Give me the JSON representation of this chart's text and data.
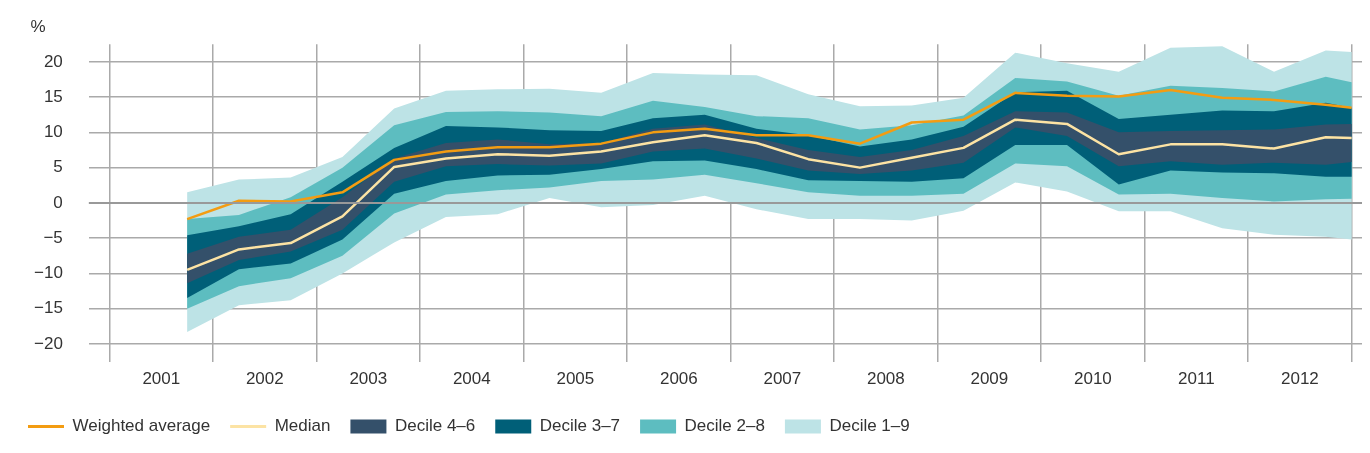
{
  "chart_data": {
    "type": "line",
    "ylabel": "%",
    "x": [
      2001.75,
      2002.25,
      2002.75,
      2003.25,
      2003.75,
      2004.25,
      2004.75,
      2005.25,
      2005.75,
      2006.25,
      2006.75,
      2007.25,
      2007.75,
      2008.25,
      2008.75,
      2009.25,
      2009.75,
      2010.25,
      2010.75,
      2011.25,
      2011.75,
      2012.25,
      2012.75,
      2013.0
    ],
    "xlim": [
      2000.8,
      2013.1
    ],
    "xticks": [
      {
        "value": 2001,
        "label": null
      },
      {
        "value": 2001.5,
        "label": "2001"
      },
      {
        "value": 2002,
        "label": null
      },
      {
        "value": 2002.5,
        "label": "2002"
      },
      {
        "value": 2003,
        "label": null
      },
      {
        "value": 2003.5,
        "label": "2003"
      },
      {
        "value": 2004,
        "label": null
      },
      {
        "value": 2004.5,
        "label": "2004"
      },
      {
        "value": 2005,
        "label": null
      },
      {
        "value": 2005.5,
        "label": "2005"
      },
      {
        "value": 2006,
        "label": null
      },
      {
        "value": 2006.5,
        "label": "2006"
      },
      {
        "value": 2007,
        "label": null
      },
      {
        "value": 2007.5,
        "label": "2007"
      },
      {
        "value": 2008,
        "label": null
      },
      {
        "value": 2008.5,
        "label": "2008"
      },
      {
        "value": 2009,
        "label": null
      },
      {
        "value": 2009.5,
        "label": "2009"
      },
      {
        "value": 2010,
        "label": null
      },
      {
        "value": 2010.5,
        "label": "2010"
      },
      {
        "value": 2011,
        "label": null
      },
      {
        "value": 2011.5,
        "label": "2011"
      },
      {
        "value": 2012,
        "label": null
      },
      {
        "value": 2012.5,
        "label": "2012"
      },
      {
        "value": 2013,
        "label": null
      }
    ],
    "ylim": [
      -22.5,
      22.5
    ],
    "yticks": [
      {
        "value": -20,
        "label": "−20"
      },
      {
        "value": -15,
        "label": "−15"
      },
      {
        "value": -10,
        "label": "−10"
      },
      {
        "value": -5,
        "label": "−5"
      },
      0,
      5,
      10,
      15,
      20
    ],
    "grid": true,
    "legend": "bottom",
    "ref_lines": [
      {
        "axis": "y",
        "value": 0,
        "color": "#999999"
      }
    ],
    "series": [
      {
        "name": "Weighted average",
        "type": "line",
        "color": "#f39c12",
        "values": [
          -2.3,
          0.3,
          0.2,
          1.5,
          6.1,
          7.3,
          7.9,
          7.9,
          8.4,
          10.0,
          10.5,
          9.6,
          9.6,
          8.4,
          11.4,
          11.8,
          15.6,
          15.2,
          15.1,
          16.0,
          14.9,
          14.6,
          13.9,
          13.5
        ]
      },
      {
        "name": "Median",
        "type": "line",
        "color": "#fce3a4",
        "values": [
          -9.5,
          -6.6,
          -5.7,
          -1.9,
          5.1,
          6.3,
          6.9,
          6.7,
          7.3,
          8.6,
          9.6,
          8.5,
          6.2,
          5.0,
          6.4,
          7.8,
          11.8,
          11.2,
          6.9,
          8.3,
          8.3,
          7.7,
          9.3,
          9.2
        ]
      },
      {
        "name": "Decile 4–6",
        "type": "area",
        "color": "#34506a",
        "values": [
          null,
          null,
          null,
          null,
          null,
          null,
          null,
          null,
          null,
          null,
          null,
          null,
          null,
          null,
          null,
          null,
          null,
          null,
          null,
          null,
          null,
          null,
          null,
          null
        ],
        "lower": [
          -11.4,
          -8.1,
          -6.9,
          -3.8,
          3.0,
          5.2,
          5.5,
          5.3,
          5.6,
          7.3,
          7.7,
          6.3,
          4.6,
          4.1,
          4.6,
          5.7,
          10.7,
          9.5,
          5.2,
          5.9,
          5.4,
          5.7,
          5.4,
          5.8
        ],
        "upper": [
          -7.2,
          -4.8,
          -3.8,
          0.8,
          6.3,
          8.5,
          9.0,
          8.3,
          8.5,
          10.5,
          11.1,
          9.2,
          7.5,
          6.5,
          7.5,
          9.5,
          13.0,
          12.8,
          10.0,
          10.2,
          10.3,
          10.4,
          11.1,
          11.2
        ]
      },
      {
        "name": "Decile 3–7",
        "type": "area",
        "color": "#005f78",
        "values": [
          null,
          null,
          null,
          null,
          null,
          null,
          null,
          null,
          null,
          null,
          null,
          null,
          null,
          null,
          null,
          null,
          null,
          null,
          null,
          null,
          null,
          null,
          null,
          null
        ],
        "lower": [
          -13.5,
          -9.4,
          -8.6,
          -5.2,
          1.3,
          3.1,
          3.9,
          4.0,
          4.8,
          5.9,
          6.0,
          4.8,
          3.2,
          3.1,
          3.0,
          3.5,
          8.2,
          8.2,
          2.6,
          4.6,
          4.3,
          4.2,
          3.7,
          3.7
        ],
        "upper": [
          -4.6,
          -3.3,
          -1.6,
          3.0,
          7.8,
          10.9,
          10.7,
          10.3,
          10.2,
          12.0,
          12.5,
          10.5,
          9.6,
          8.0,
          9.0,
          10.8,
          15.7,
          15.9,
          11.9,
          12.5,
          13.1,
          13.0,
          14.2,
          13.5
        ]
      },
      {
        "name": "Decile 2–8",
        "type": "area",
        "color": "#5dbdc0",
        "values": [
          null,
          null,
          null,
          null,
          null,
          null,
          null,
          null,
          null,
          null,
          null,
          null,
          null,
          null,
          null,
          null,
          null,
          null,
          null,
          null,
          null,
          null,
          null,
          null
        ],
        "lower": [
          -15.0,
          -11.8,
          -10.7,
          -7.5,
          -1.5,
          1.2,
          1.8,
          2.2,
          3.1,
          3.3,
          4.0,
          2.8,
          1.5,
          1.0,
          1.0,
          1.3,
          5.6,
          5.2,
          1.2,
          1.3,
          0.7,
          0.2,
          0.5,
          0.6
        ],
        "upper": [
          -2.3,
          -1.7,
          0.8,
          5.0,
          11.0,
          12.9,
          13.0,
          12.8,
          12.3,
          14.5,
          13.6,
          12.3,
          12.0,
          10.4,
          11.0,
          12.4,
          17.7,
          17.2,
          15.2,
          16.6,
          16.3,
          15.8,
          17.9,
          17.1
        ]
      },
      {
        "name": "Decile 1–9",
        "type": "area",
        "color": "#bde3e6",
        "values": [
          null,
          null,
          null,
          null,
          null,
          null,
          null,
          null,
          null,
          null,
          null,
          null,
          null,
          null,
          null,
          null,
          null,
          null,
          null,
          null,
          null,
          null,
          null,
          null
        ],
        "lower": [
          -18.3,
          -14.5,
          -13.8,
          -10.0,
          -5.6,
          -2.0,
          -1.6,
          0.7,
          -0.6,
          -0.3,
          1.0,
          -0.9,
          -2.3,
          -2.3,
          -2.5,
          -1.1,
          2.9,
          1.6,
          -1.2,
          -1.2,
          -3.6,
          -4.5,
          -4.8,
          -5.2
        ],
        "upper": [
          1.5,
          3.3,
          3.6,
          6.5,
          13.4,
          15.9,
          16.1,
          16.2,
          15.6,
          18.4,
          18.2,
          18.1,
          15.4,
          13.7,
          13.8,
          14.9,
          21.3,
          19.8,
          18.6,
          22.0,
          22.2,
          18.6,
          21.6,
          21.4
        ]
      }
    ]
  }
}
